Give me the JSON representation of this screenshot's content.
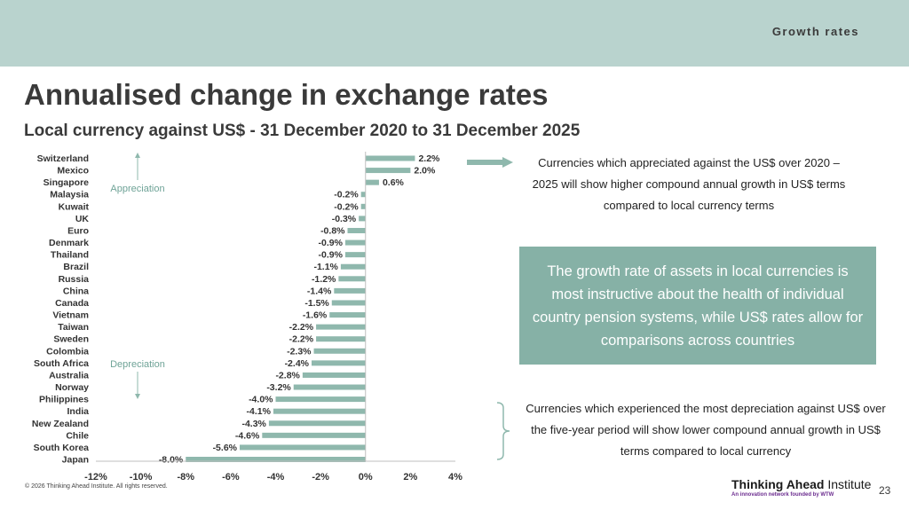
{
  "header": {
    "section_label": "Growth rates"
  },
  "title": "Annualised change in exchange rates",
  "subtitle": "Local currency against US$ - 31 December 2020 to 31 December 2025",
  "chart_data": {
    "type": "bar",
    "orientation": "horizontal",
    "categories": [
      "Switzerland",
      "Mexico",
      "Singapore",
      "Malaysia",
      "Kuwait",
      "UK",
      "Euro",
      "Denmark",
      "Thailand",
      "Brazil",
      "Russia",
      "China",
      "Canada",
      "Vietnam",
      "Taiwan",
      "Sweden",
      "Colombia",
      "South Africa",
      "Australia",
      "Norway",
      "Philippines",
      "India",
      "New Zealand",
      "Chile",
      "South Korea",
      "Japan"
    ],
    "values": [
      2.2,
      2.0,
      0.6,
      -0.2,
      -0.2,
      -0.3,
      -0.8,
      -0.9,
      -0.9,
      -1.1,
      -1.2,
      -1.4,
      -1.5,
      -1.6,
      -2.2,
      -2.2,
      -2.3,
      -2.4,
      -2.8,
      -3.2,
      -4.0,
      -4.1,
      -4.3,
      -4.6,
      -5.6,
      -8.0
    ],
    "data_labels": [
      "2.2%",
      "2.0%",
      "0.6%",
      "-0.2%",
      "-0.2%",
      "-0.3%",
      "-0.8%",
      "-0.9%",
      "-0.9%",
      "-1.1%",
      "-1.2%",
      "-1.4%",
      "-1.5%",
      "-1.6%",
      "-2.2%",
      "-2.2%",
      "-2.3%",
      "-2.4%",
      "-2.8%",
      "-3.2%",
      "-4.0%",
      "-4.1%",
      "-4.3%",
      "-4.6%",
      "-5.6%",
      "-8.0%"
    ],
    "x_ticks": [
      -12,
      -10,
      -8,
      -6,
      -4,
      -2,
      0,
      2,
      4
    ],
    "x_tick_labels": [
      "-12%",
      "-10%",
      "-8%",
      "-6%",
      "-4%",
      "-2%",
      "0%",
      "2%",
      "4%"
    ],
    "xlim": [
      -12,
      4
    ],
    "bar_color": "#8fb8ad",
    "annotations": {
      "appreciation": "Appreciation",
      "depreciation": "Depreciation"
    },
    "grid": false
  },
  "notes": {
    "top": "Currencies which appreciated against the US$ over 2020 – 2025 will show higher compound annual growth in US$ terms compared to local currency terms",
    "callout": "The growth rate of assets in local currencies is most instructive about the health of individual country pension systems, while US$ rates allow for comparisons across countries",
    "bottom": "Currencies which experienced the most depreciation against US$ over the five-year period will show lower compound annual growth in US$ terms compared to local currency"
  },
  "footer": {
    "copyright": "© 2026 Thinking Ahead Institute. All rights reserved."
  },
  "logo": {
    "bold": "Thinking Ahead",
    "regular": " Institute",
    "tagline": "An innovation network founded by WTW"
  },
  "page_number": "23",
  "colors": {
    "header_band": "#b9d3ce",
    "accent": "#86b1a6",
    "bar": "#8fb8ad",
    "text": "#3a3a3a",
    "logo_tagline": "#6b2c8f"
  }
}
